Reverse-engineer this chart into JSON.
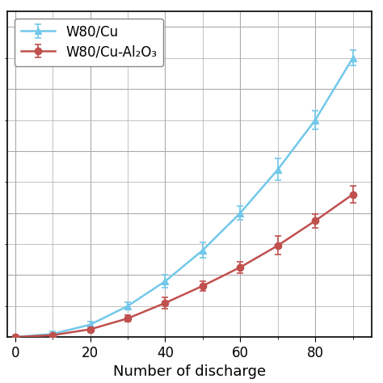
{
  "series": [
    {
      "label": "W80/Cu",
      "color": "#72c8ea",
      "marker": "^",
      "x": [
        0,
        10,
        20,
        30,
        40,
        50,
        60,
        70,
        80,
        90
      ],
      "y": [
        0,
        0.01,
        0.04,
        0.1,
        0.18,
        0.28,
        0.4,
        0.54,
        0.7,
        0.9
      ],
      "yerr": [
        0.005,
        0.008,
        0.01,
        0.012,
        0.022,
        0.025,
        0.022,
        0.035,
        0.03,
        0.025
      ]
    },
    {
      "label": "W80/Cu-Al₂O₃",
      "color": "#c0504d",
      "marker": "o",
      "x": [
        0,
        10,
        20,
        30,
        40,
        50,
        60,
        70,
        80,
        90
      ],
      "y": [
        0,
        0.006,
        0.025,
        0.06,
        0.11,
        0.165,
        0.225,
        0.295,
        0.375,
        0.46
      ],
      "yerr": [
        0.003,
        0.005,
        0.008,
        0.01,
        0.018,
        0.015,
        0.018,
        0.03,
        0.022,
        0.028
      ]
    }
  ],
  "xlabel": "Number of discharge",
  "xlim": [
    -2,
    95
  ],
  "ylim": [
    0,
    1.05
  ],
  "xticks": [
    0,
    20,
    40,
    60,
    80
  ],
  "grid_color": "#aaaaaa",
  "background_color": "#ffffff",
  "legend_loc": "upper left",
  "linewidth": 1.8,
  "markersize": 6,
  "capsize": 3,
  "xlabel_fontsize": 13,
  "tick_fontsize": 12,
  "legend_fontsize": 12
}
